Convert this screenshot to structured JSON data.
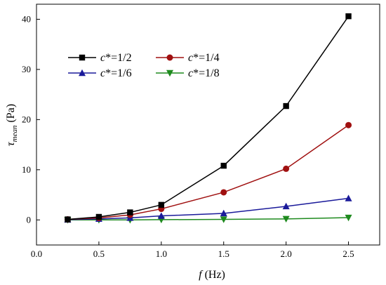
{
  "chart_data": {
    "type": "line",
    "xlabel": {
      "symbol": "f",
      "unit": " (Hz)"
    },
    "ylabel": {
      "symbol": "τ",
      "subscript": "mean",
      "unit": " (Pa)"
    },
    "xlim": [
      0.0,
      2.75
    ],
    "ylim": [
      -5,
      43
    ],
    "xticks": [
      0.0,
      0.5,
      1.0,
      1.5,
      2.0,
      2.5
    ],
    "xtick_labels": [
      "0.0",
      "0.5",
      "1.0",
      "1.5",
      "2.0",
      "2.5"
    ],
    "yticks": [
      0,
      10,
      20,
      30,
      40
    ],
    "ytick_labels": [
      "0",
      "10",
      "20",
      "30",
      "40"
    ],
    "grid": false,
    "legend_position": "top-left",
    "x": [
      0.25,
      0.5,
      0.75,
      1.0,
      1.5,
      2.0,
      2.5
    ],
    "series": [
      {
        "name": "c*=1/2",
        "label_prefix": "c",
        "label_rest": "*=1/2",
        "color": "#000000",
        "marker": "square",
        "values": [
          0.1,
          0.6,
          1.5,
          3.0,
          10.8,
          22.7,
          40.6
        ]
      },
      {
        "name": "c*=1/4",
        "label_prefix": "c",
        "label_rest": "*=1/4",
        "color": "#a01010",
        "marker": "circle",
        "values": [
          0.1,
          0.4,
          1.0,
          2.2,
          5.5,
          10.2,
          18.9
        ]
      },
      {
        "name": "c*=1/6",
        "label_prefix": "c",
        "label_rest": "*=1/6",
        "color": "#1a1a9a",
        "marker": "triangle-up",
        "values": [
          0.05,
          0.2,
          0.4,
          0.8,
          1.3,
          2.7,
          4.3
        ]
      },
      {
        "name": "c*=1/8",
        "label_prefix": "c",
        "label_rest": "*=1/8",
        "color": "#1e8a1e",
        "marker": "triangle-down",
        "values": [
          0.0,
          0.0,
          0.0,
          0.05,
          0.1,
          0.2,
          0.45
        ]
      }
    ]
  }
}
